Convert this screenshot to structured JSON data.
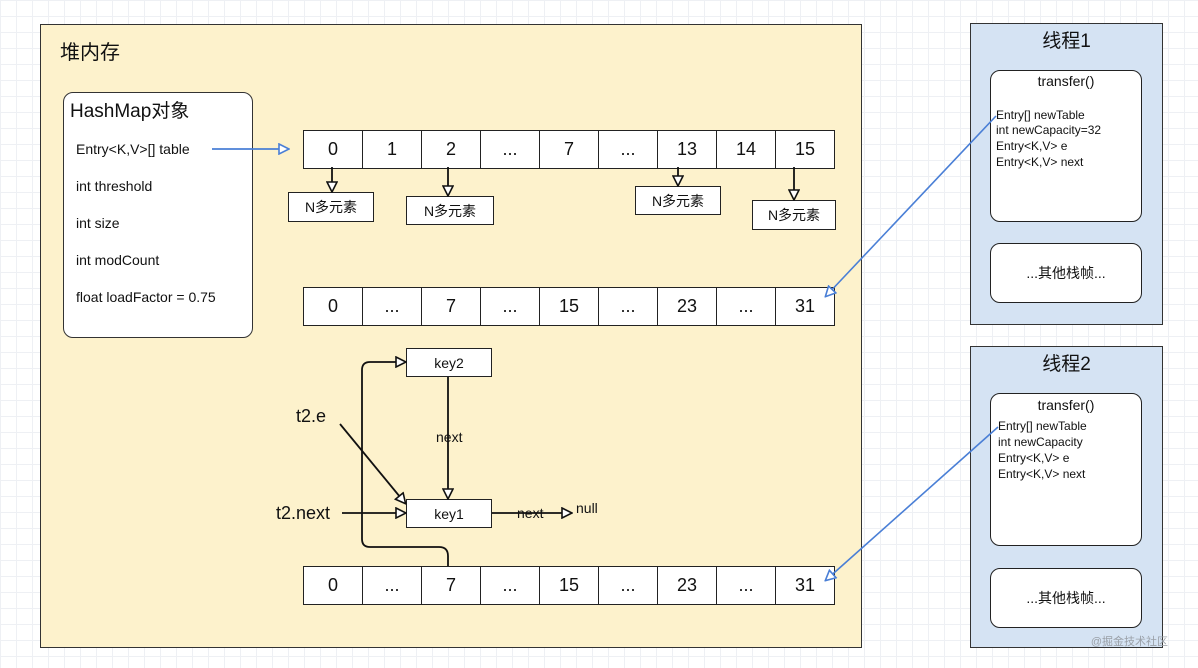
{
  "heap": {
    "title": "堆内存"
  },
  "hashmap": {
    "title": "HashMap对象",
    "fields": [
      "Entry<K,V>[] table",
      "int threshold",
      "int size",
      "int modCount",
      "float loadFactor = 0.75"
    ]
  },
  "table_old": {
    "cells": [
      "0",
      "1",
      "2",
      "...",
      "7",
      "...",
      "13",
      "14",
      "15"
    ]
  },
  "table_new_1": {
    "cells": [
      "0",
      "...",
      "7",
      "...",
      "15",
      "...",
      "23",
      "...",
      "31"
    ]
  },
  "table_new_2": {
    "cells": [
      "0",
      "...",
      "7",
      "...",
      "15",
      "...",
      "23",
      "...",
      "31"
    ]
  },
  "bucket_label": "N多元素",
  "entries": {
    "key1": "key1",
    "key2": "key2",
    "next_label": "next",
    "null_label": "null"
  },
  "pointers": {
    "e": "t2.e",
    "next": "t2.next"
  },
  "thread1": {
    "title": "线程1",
    "frame_title": "transfer()",
    "vars": [
      "Entry[] newTable",
      "int newCapacity=32",
      "Entry<K,V> e",
      "Entry<K,V> next"
    ],
    "other_frames": "...其他栈帧..."
  },
  "thread2": {
    "title": "线程2",
    "frame_title": "transfer()",
    "vars": [
      "Entry[] newTable",
      "int newCapacity",
      "Entry<K,V> e",
      "Entry<K,V> next"
    ],
    "other_frames": "...其他栈帧..."
  },
  "watermark": "@掘金技术社区"
}
